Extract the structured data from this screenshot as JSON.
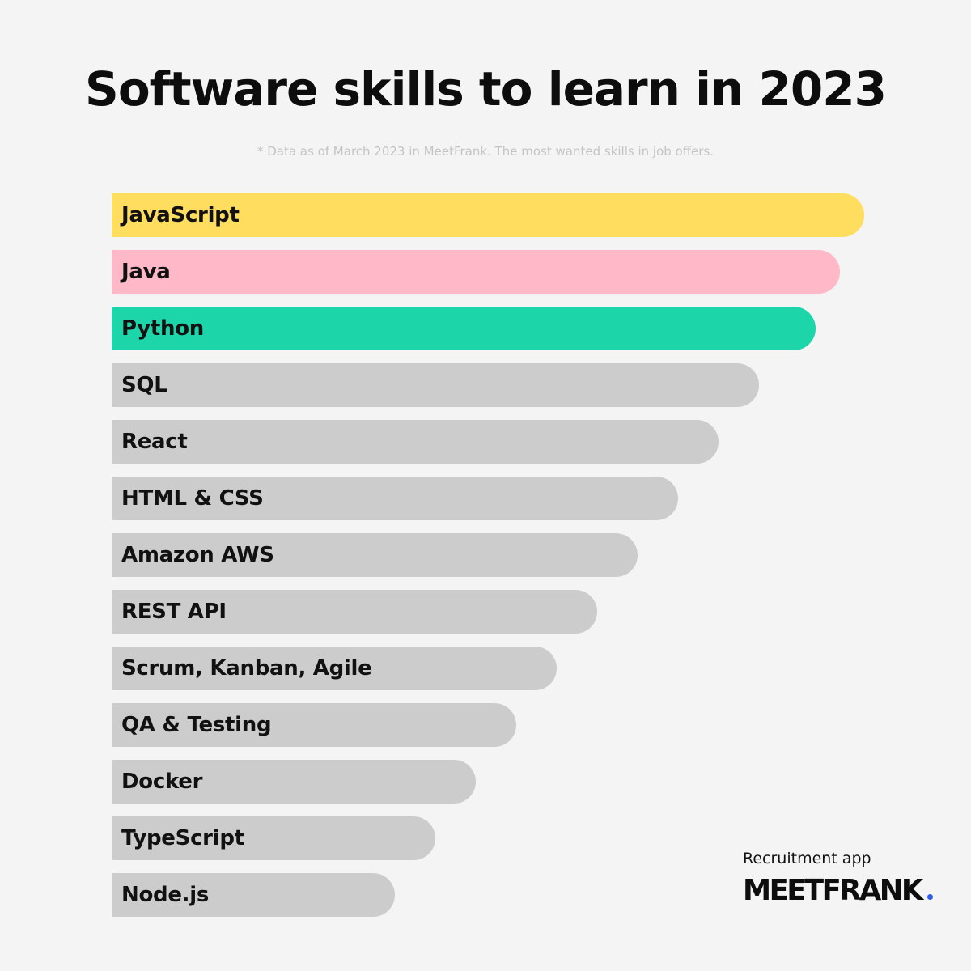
{
  "title": "Software skills to learn in 2023",
  "subtitle": "* Data as of March 2023 in MeetFrank. The most wanted skills in job offers.",
  "brand": {
    "tagline": "Recruitment app",
    "name": "MEETFRANK",
    "dot_color": "#2f5bea"
  },
  "colors": {
    "background": "#f4f4f4",
    "highlight_1": "#ffdd5e",
    "highlight_2": "#ffb8c8",
    "highlight_3": "#1cd6aa",
    "default_bar": "#cccccc"
  },
  "chart_data": {
    "type": "bar",
    "orientation": "horizontal",
    "title": "Software skills to learn in 2023",
    "subtitle": "* Data as of March 2023 in MeetFrank. The most wanted skills in job offers.",
    "categories": [
      "JavaScript",
      "Java",
      "Python",
      "SQL",
      "React",
      "HTML & CSS",
      "Amazon AWS",
      "REST API",
      "Scrum, Kanban, Agile",
      "QA & Testing",
      "Docker",
      "TypeScript",
      "Node.js"
    ],
    "values": [
      930,
      900,
      870,
      800,
      750,
      700,
      650,
      600,
      550,
      500,
      450,
      400,
      350
    ],
    "bar_colors": [
      "#ffdd5e",
      "#ffb8c8",
      "#1cd6aa",
      "#cccccc",
      "#cccccc",
      "#cccccc",
      "#cccccc",
      "#cccccc",
      "#cccccc",
      "#cccccc",
      "#cccccc",
      "#cccccc",
      "#cccccc"
    ],
    "xlim": [
      0,
      930
    ],
    "grid": false,
    "legend": "none",
    "axes_visible": false
  }
}
